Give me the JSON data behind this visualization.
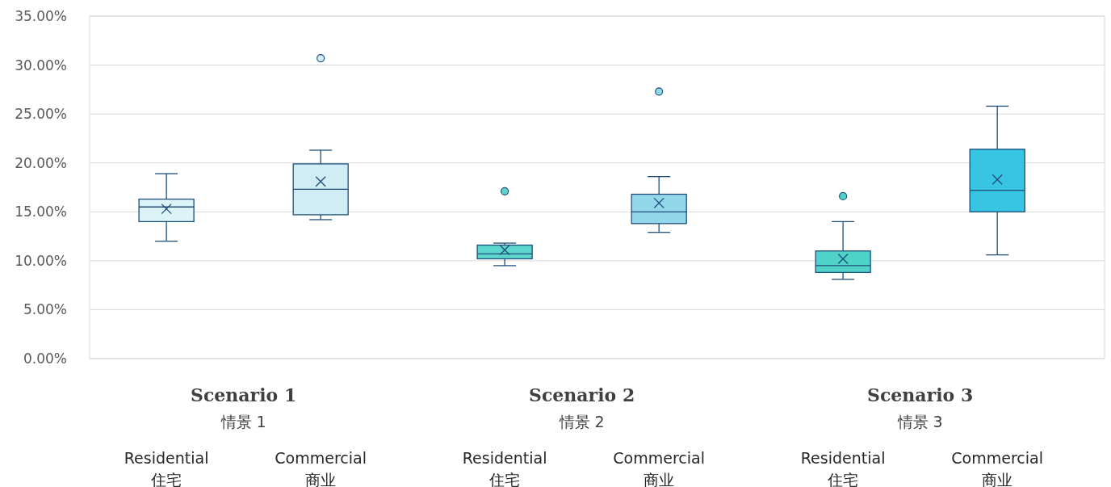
{
  "chart_data": {
    "type": "box",
    "categories": [
      "Residential\n住宅",
      "Commercial\n商业",
      "Residential\n住宅",
      "Commercial\n商业",
      "Residential\n住宅",
      "Commercial\n商业"
    ],
    "boxes": [
      {
        "low": 12.0,
        "q1": 14.0,
        "median": 15.5,
        "q3": 16.3,
        "high": 18.9,
        "mean": 15.3
      },
      {
        "low": 14.2,
        "q1": 14.7,
        "median": 17.3,
        "q3": 19.9,
        "high": 21.3,
        "mean": 18.1,
        "outliers": [
          30.7
        ]
      },
      {
        "low": 9.5,
        "q1": 10.2,
        "median": 10.7,
        "q3": 11.6,
        "high": 11.8,
        "mean": 11.1,
        "outliers": [
          17.1
        ]
      },
      {
        "low": 12.9,
        "q1": 13.8,
        "median": 15.0,
        "q3": 16.8,
        "high": 18.6,
        "mean": 15.9,
        "outliers": [
          27.3
        ]
      },
      {
        "low": 8.1,
        "q1": 8.8,
        "median": 9.5,
        "q3": 11.0,
        "high": 14.0,
        "mean": 10.2,
        "outliers": [
          16.6
        ]
      },
      {
        "low": 10.6,
        "q1": 15.0,
        "median": 17.2,
        "q3": 21.4,
        "high": 25.8,
        "mean": 18.3
      }
    ],
    "colors": [
      "#dcf3f8",
      "#d0ecf4",
      "#5dd6cd",
      "#93d7ea",
      "#4fd3c9",
      "#38c4e3"
    ],
    "ylim": [
      0,
      35
    ],
    "yticks": [
      {
        "value": 0,
        "label": "0.00%"
      },
      {
        "value": 5,
        "label": "5.00%"
      },
      {
        "value": 10,
        "label": "10.00%"
      },
      {
        "value": 15,
        "label": "15.00%"
      },
      {
        "value": 20,
        "label": "20.00%"
      },
      {
        "value": 25,
        "label": "25.00%"
      },
      {
        "value": 30,
        "label": "30.00%"
      },
      {
        "value": 35,
        "label": "35.00%"
      }
    ],
    "grid": "y",
    "annotations": [
      "Scenario 1\n情景 1",
      "Scenario 2\n情景 2",
      "Scenario 3\n情景 3"
    ]
  }
}
